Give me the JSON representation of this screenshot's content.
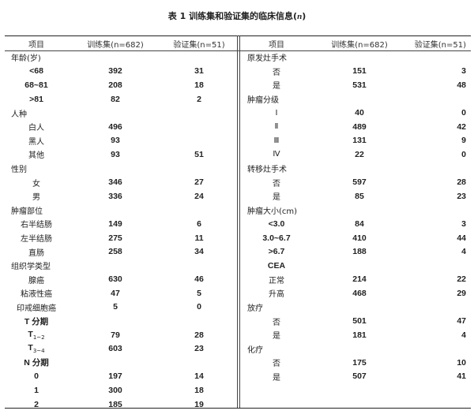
{
  "title": {
    "prefix": "表 1  训练集和验证集的临床信息(",
    "n": "n",
    "suffix": ")"
  },
  "headers": [
    "项目",
    "训练集(n=682)",
    "验证集(n=51)"
  ],
  "left": [
    {
      "label": "年龄(岁)",
      "type": "cat",
      "train": "",
      "valid": ""
    },
    {
      "label": "<68",
      "type": "sub",
      "train": "392",
      "valid": "31"
    },
    {
      "label": "68~81",
      "type": "sub",
      "train": "208",
      "valid": "18"
    },
    {
      "label": ">81",
      "type": "sub",
      "train": "82",
      "valid": "2"
    },
    {
      "label": "人种",
      "type": "cat",
      "train": "",
      "valid": ""
    },
    {
      "label": "白人",
      "type": "sub",
      "train": "496",
      "valid": ""
    },
    {
      "label": "黑人",
      "type": "sub",
      "train": "93",
      "valid": ""
    },
    {
      "label": "其他",
      "type": "sub",
      "train": "93",
      "valid": "51"
    },
    {
      "label": "性别",
      "type": "cat",
      "train": "",
      "valid": ""
    },
    {
      "label": "女",
      "type": "sub",
      "train": "346",
      "valid": "27"
    },
    {
      "label": "男",
      "type": "sub",
      "train": "336",
      "valid": "24"
    },
    {
      "label": "肿瘤部位",
      "type": "cat",
      "train": "",
      "valid": ""
    },
    {
      "label": "右半结肠",
      "type": "sub",
      "train": "149",
      "valid": "6"
    },
    {
      "label": "左半结肠",
      "type": "sub",
      "train": "275",
      "valid": "11"
    },
    {
      "label": "直肠",
      "type": "sub",
      "train": "258",
      "valid": "34"
    },
    {
      "label": "组织学类型",
      "type": "cat",
      "train": "",
      "valid": ""
    },
    {
      "label": "腺癌",
      "type": "sub",
      "train": "630",
      "valid": "46"
    },
    {
      "label": "粘液性癌",
      "type": "sub",
      "train": "47",
      "valid": "5"
    },
    {
      "label": "印戒细胞癌",
      "type": "sub",
      "train": "5",
      "valid": "0"
    },
    {
      "label": "T 分期",
      "type": "sub",
      "train": "",
      "valid": ""
    },
    {
      "label": "T",
      "subscript": "1~2",
      "type": "sub",
      "train": "79",
      "valid": "28"
    },
    {
      "label": "T",
      "subscript": "3~4",
      "type": "sub",
      "train": "603",
      "valid": "23"
    },
    {
      "label": "N 分期",
      "type": "sub",
      "train": "",
      "valid": ""
    },
    {
      "label": "0",
      "type": "sub",
      "train": "197",
      "valid": "14"
    },
    {
      "label": "1",
      "type": "sub",
      "train": "300",
      "valid": "18"
    },
    {
      "label": "2",
      "type": "sub",
      "train": "185",
      "valid": "19"
    }
  ],
  "right": [
    {
      "label": "原发灶手术",
      "type": "cat",
      "train": "",
      "valid": ""
    },
    {
      "label": "否",
      "type": "sub",
      "train": "151",
      "valid": "3"
    },
    {
      "label": "是",
      "type": "sub",
      "train": "531",
      "valid": "48"
    },
    {
      "label": "肿瘤分级",
      "type": "cat",
      "train": "",
      "valid": ""
    },
    {
      "label": "Ⅰ",
      "type": "sub",
      "train": "40",
      "valid": "0"
    },
    {
      "label": "Ⅱ",
      "type": "sub",
      "train": "489",
      "valid": "42"
    },
    {
      "label": "Ⅲ",
      "type": "sub",
      "train": "131",
      "valid": "9"
    },
    {
      "label": "Ⅳ",
      "type": "sub",
      "train": "22",
      "valid": "0"
    },
    {
      "label": "转移灶手术",
      "type": "cat",
      "train": "",
      "valid": ""
    },
    {
      "label": "否",
      "type": "sub",
      "train": "597",
      "valid": "28"
    },
    {
      "label": "是",
      "type": "sub",
      "train": "85",
      "valid": "23"
    },
    {
      "label": "肿瘤大小(cm)",
      "type": "cat",
      "train": "",
      "valid": ""
    },
    {
      "label": "<3.0",
      "type": "sub",
      "train": "84",
      "valid": "3"
    },
    {
      "label": "3.0~6.7",
      "type": "sub",
      "train": "410",
      "valid": "44"
    },
    {
      "label": ">6.7",
      "type": "sub",
      "train": "188",
      "valid": "4"
    },
    {
      "label": "CEA",
      "type": "sub",
      "train": "",
      "valid": ""
    },
    {
      "label": "正常",
      "type": "sub",
      "train": "214",
      "valid": "22"
    },
    {
      "label": "升高",
      "type": "sub",
      "train": "468",
      "valid": "29"
    },
    {
      "label": "放疗",
      "type": "cat",
      "train": "",
      "valid": ""
    },
    {
      "label": "否",
      "type": "sub",
      "train": "501",
      "valid": "47"
    },
    {
      "label": "是",
      "type": "sub",
      "train": "181",
      "valid": "4"
    },
    {
      "label": "化疗",
      "type": "cat",
      "train": "",
      "valid": ""
    },
    {
      "label": "否",
      "type": "sub",
      "train": "175",
      "valid": "10"
    },
    {
      "label": "是",
      "type": "sub",
      "train": "507",
      "valid": "41"
    }
  ]
}
